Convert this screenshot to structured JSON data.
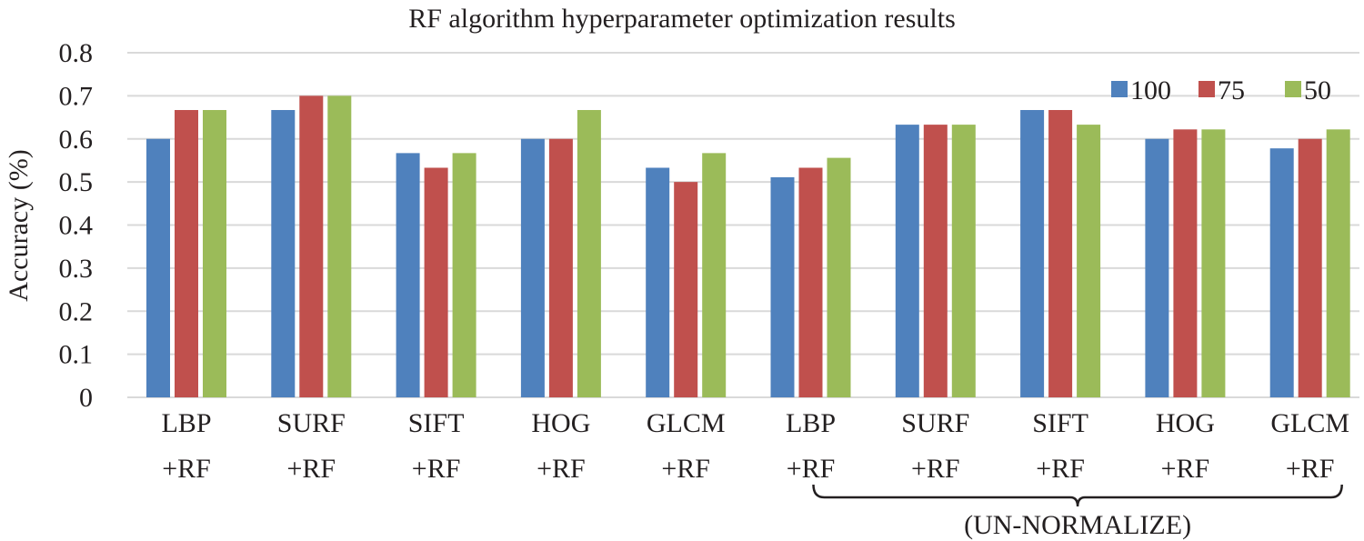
{
  "chart_data": {
    "type": "bar",
    "title": "RF algorithm hyperparameter optimization results",
    "ylabel": "Accuracy (%)",
    "xlabel": "",
    "ylim": [
      0,
      0.8
    ],
    "yticks": [
      "0",
      "0.1",
      "0.2",
      "0.3",
      "0.4",
      "0.5",
      "0.6",
      "0.7",
      "0.8"
    ],
    "grid": true,
    "legend_position": "top-right",
    "categories": [
      [
        "LBP",
        "+RF"
      ],
      [
        "SURF",
        "+RF"
      ],
      [
        "SIFT",
        "+RF"
      ],
      [
        "HOG",
        "+RF"
      ],
      [
        "GLCM",
        "+RF"
      ],
      [
        "LBP",
        "+RF"
      ],
      [
        "SURF",
        "+RF"
      ],
      [
        "SIFT",
        "+RF"
      ],
      [
        "HOG",
        "+RF"
      ],
      [
        "GLCM",
        "+RF"
      ]
    ],
    "series": [
      {
        "name": "100",
        "color": "#4f81bd",
        "values": [
          0.6,
          0.667,
          0.567,
          0.6,
          0.533,
          0.511,
          0.633,
          0.667,
          0.6,
          0.578
        ]
      },
      {
        "name": "75",
        "color": "#c0504d",
        "values": [
          0.667,
          0.7,
          0.533,
          0.6,
          0.5,
          0.533,
          0.633,
          0.667,
          0.622,
          0.6
        ]
      },
      {
        "name": "50",
        "color": "#9bbb59",
        "values": [
          0.667,
          0.7,
          0.567,
          0.667,
          0.567,
          0.556,
          0.633,
          0.633,
          0.622,
          0.622
        ]
      }
    ],
    "group_annotation": {
      "label": "(UN-NORMALIZE)",
      "from_category": 5,
      "to_category": 9
    }
  }
}
